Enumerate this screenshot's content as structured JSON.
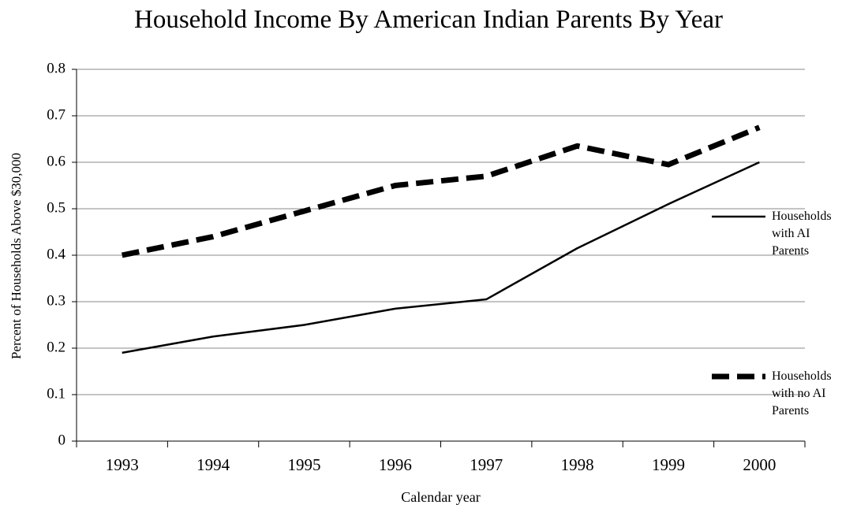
{
  "chart_data": {
    "type": "line",
    "title": "Household Income By American Indian Parents By Year",
    "x_label": "Calendar year",
    "y_label": "Percent of Households Above $30,000",
    "categories": [
      "1993",
      "1994",
      "1995",
      "1996",
      "1997",
      "1998",
      "1999",
      "2000"
    ],
    "series": [
      {
        "name": "Households with AI Parents",
        "color": "#000000",
        "dash": false,
        "values": [
          0.19,
          0.225,
          0.25,
          0.285,
          0.305,
          0.415,
          0.51,
          0.6
        ]
      },
      {
        "name": "Households with no AI Parents",
        "color": "#000000",
        "dash": true,
        "values": [
          0.4,
          0.44,
          0.495,
          0.55,
          0.57,
          0.635,
          0.595,
          0.675
        ]
      }
    ],
    "ylim": [
      0,
      0.8
    ],
    "yticks": [
      0,
      0.1,
      0.2,
      0.3,
      0.4,
      0.5,
      0.6,
      0.7,
      0.8
    ],
    "grid": true,
    "legend": "right"
  }
}
